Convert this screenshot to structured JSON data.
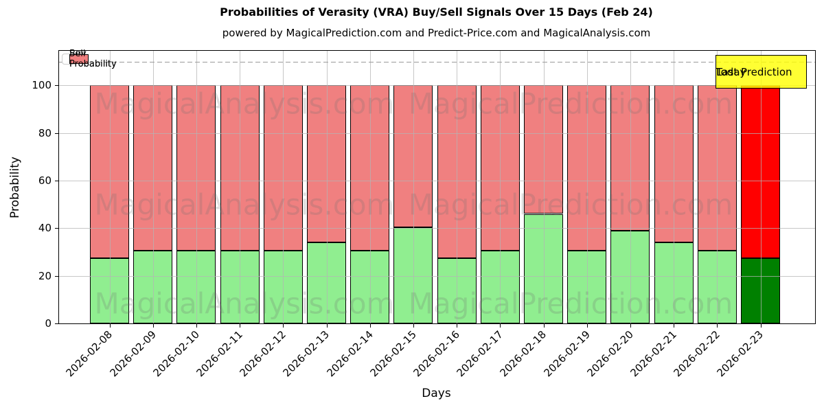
{
  "figure": {
    "title": "Probabilities of Verasity (VRA) Buy/Sell Signals Over 15 Days (Feb 24)",
    "subtitle": "powered by MagicalPrediction.com and Predict-Price.com and MagicalAnalysis.com"
  },
  "annotations": {
    "today_box": {
      "lines": [
        "Today",
        "Last Prediction"
      ],
      "bg": "#FFFF00",
      "bg_alpha": 0.8,
      "border": "#000000"
    },
    "watermark": {
      "texts": [
        "MagicalAnalysis.com",
        "MagicalPrediction.com"
      ],
      "color": "rgba(110,110,110,0.22)"
    }
  },
  "chart_data": {
    "type": "bar",
    "stacked": true,
    "title": "Probabilities of Verasity (VRA) Buy/Sell Signals Over 15 Days (Feb 24)",
    "xlabel": "Days",
    "ylabel": "Probability",
    "categories": [
      "2026-02-08",
      "2026-02-09",
      "2026-02-10",
      "2026-02-11",
      "2026-02-12",
      "2026-02-13",
      "2026-02-14",
      "2026-02-15",
      "2026-02-16",
      "2026-02-17",
      "2026-02-18",
      "2026-02-19",
      "2026-02-20",
      "2026-02-21",
      "2026-02-22",
      "2026-02-23"
    ],
    "series": [
      {
        "name": "Buy Probability",
        "color": "#90EE90",
        "values": [
          27.5,
          30.5,
          30.5,
          30.5,
          30.5,
          34,
          30.5,
          40.5,
          27.5,
          30.5,
          46,
          30.5,
          39,
          34,
          30.5,
          27.5
        ]
      },
      {
        "name": "Sell Probability",
        "color": "#F08080",
        "values": [
          72.5,
          69.5,
          69.5,
          69.5,
          69.5,
          66,
          69.5,
          59.5,
          72.5,
          69.5,
          54,
          69.5,
          61,
          66,
          69.5,
          72.5
        ]
      }
    ],
    "today_index": 15,
    "today_colors": {
      "buy": "#008000",
      "sell": "#FF0000"
    },
    "ylim": [
      0,
      114.5
    ],
    "yticks": [
      0,
      20,
      40,
      60,
      80,
      100
    ],
    "hline": {
      "y": 110,
      "style": "dashed",
      "color": "#999999"
    },
    "grid": true,
    "legend_position": "upper left"
  }
}
